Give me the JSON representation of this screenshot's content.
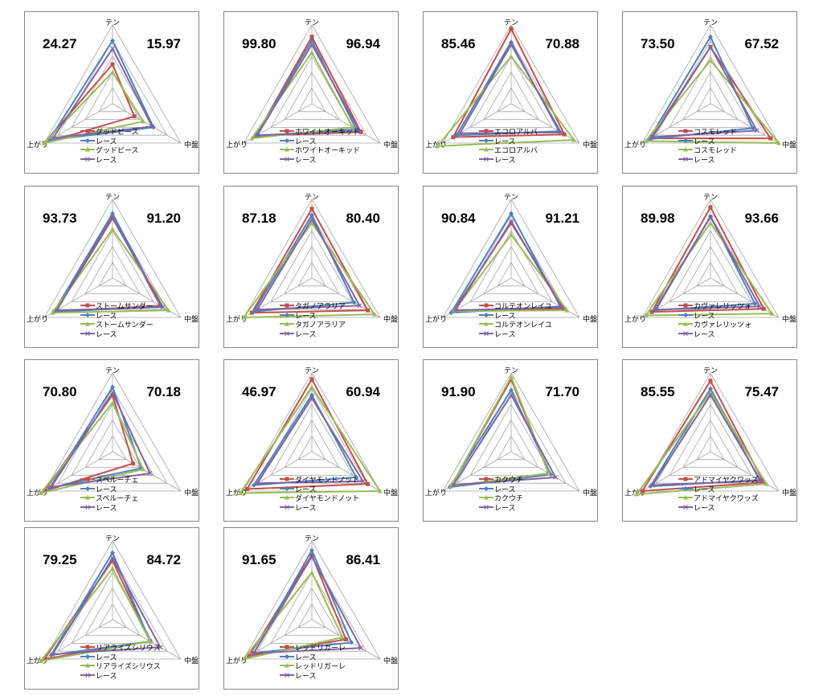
{
  "axes": [
    "テン",
    "中盤",
    "上がり"
  ],
  "series_colors": [
    "#C0504D",
    "#4F81BD",
    "#9BBB59",
    "#8064A2"
  ],
  "markers": [
    "square",
    "diamond",
    "triangle",
    "x"
  ],
  "chart_data": [
    {
      "type": "radar",
      "score_left": "24.27",
      "score_right": "15.97",
      "series": [
        {
          "name": "グッドピース",
          "values": [
            0.5,
            0.32,
            1.0
          ]
        },
        {
          "name": "レース",
          "values": [
            0.8,
            0.6,
            0.93
          ]
        },
        {
          "name": "グッドピース",
          "values": [
            0.4,
            0.45,
            1.0
          ]
        },
        {
          "name": "レース",
          "values": [
            0.7,
            0.58,
            0.87
          ]
        }
      ]
    },
    {
      "type": "radar",
      "score_left": "99.80",
      "score_right": "96.94",
      "series": [
        {
          "name": "ホワイトオーキッド",
          "values": [
            0.85,
            0.72,
            0.82
          ]
        },
        {
          "name": "レース",
          "values": [
            0.8,
            0.65,
            0.82
          ]
        },
        {
          "name": "ホワイトオーキッド",
          "values": [
            0.65,
            0.6,
            0.88
          ]
        },
        {
          "name": "レース",
          "values": [
            0.75,
            0.7,
            0.8
          ]
        }
      ]
    },
    {
      "type": "radar",
      "score_left": "85.46",
      "score_right": "70.88",
      "series": [
        {
          "name": "エコロアルバ",
          "values": [
            0.95,
            0.78,
            0.85
          ]
        },
        {
          "name": "レース",
          "values": [
            0.78,
            0.7,
            0.8
          ]
        },
        {
          "name": "エコロアルバ",
          "values": [
            0.6,
            0.92,
            1.08
          ]
        },
        {
          "name": "レース",
          "values": [
            0.75,
            0.73,
            0.75
          ]
        }
      ]
    },
    {
      "type": "radar",
      "score_left": "73.50",
      "score_right": "67.52",
      "series": [
        {
          "name": "コスモレッド",
          "values": [
            0.72,
            0.88,
            0.88
          ]
        },
        {
          "name": "レース",
          "values": [
            0.85,
            0.62,
            0.9
          ]
        },
        {
          "name": "コスモレッド",
          "values": [
            0.55,
            1.0,
            0.95
          ]
        },
        {
          "name": "レース",
          "values": [
            0.72,
            0.68,
            0.85
          ]
        }
      ]
    },
    {
      "type": "radar",
      "score_left": "93.73",
      "score_right": "91.20",
      "series": [
        {
          "name": "ストームサンダー",
          "values": [
            0.78,
            0.7,
            0.85
          ]
        },
        {
          "name": "レース",
          "values": [
            0.82,
            0.72,
            0.86
          ]
        },
        {
          "name": "ストームサンダー",
          "values": [
            0.62,
            0.82,
            0.88
          ]
        },
        {
          "name": "レース",
          "values": [
            0.76,
            0.74,
            0.82
          ]
        }
      ]
    },
    {
      "type": "radar",
      "score_left": "87.18",
      "score_right": "80.40",
      "series": [
        {
          "name": "タガノアラリア",
          "values": [
            0.88,
            0.82,
            0.88
          ]
        },
        {
          "name": "レース",
          "values": [
            0.8,
            0.62,
            0.85
          ]
        },
        {
          "name": "タガノアラリア",
          "values": [
            0.7,
            0.92,
            1.0
          ]
        },
        {
          "name": "レース",
          "values": [
            0.75,
            0.7,
            0.8
          ]
        }
      ]
    },
    {
      "type": "radar",
      "score_left": "90.84",
      "score_right": "91.21",
      "series": [
        {
          "name": "コルテオンレイユ",
          "values": [
            0.7,
            0.78,
            0.85
          ]
        },
        {
          "name": "レース",
          "values": [
            0.82,
            0.72,
            0.88
          ]
        },
        {
          "name": "コルテオンレイユ",
          "values": [
            0.55,
            0.82,
            0.84
          ]
        },
        {
          "name": "レース",
          "values": [
            0.72,
            0.74,
            0.82
          ]
        }
      ]
    },
    {
      "type": "radar",
      "score_left": "89.98",
      "score_right": "93.66",
      "series": [
        {
          "name": "カヴァレリッツォ",
          "values": [
            0.9,
            0.78,
            0.86
          ]
        },
        {
          "name": "レース",
          "values": [
            0.78,
            0.65,
            0.82
          ]
        },
        {
          "name": "カヴァレリッツォ",
          "values": [
            0.7,
            0.9,
            0.95
          ]
        },
        {
          "name": "レース",
          "values": [
            0.78,
            0.72,
            0.8
          ]
        }
      ]
    },
    {
      "type": "radar",
      "score_left": "70.80",
      "score_right": "70.18",
      "series": [
        {
          "name": "スペルーチェ",
          "values": [
            0.72,
            0.3,
            1.0
          ]
        },
        {
          "name": "レース",
          "values": [
            0.82,
            0.42,
            0.92
          ]
        },
        {
          "name": "スペルーチェ",
          "values": [
            0.62,
            0.45,
            1.05
          ]
        },
        {
          "name": "レース",
          "values": [
            0.75,
            0.55,
            0.9
          ]
        }
      ]
    },
    {
      "type": "radar",
      "score_left": "46.97",
      "score_right": "60.94",
      "series": [
        {
          "name": "ダイヤモンドノット",
          "values": [
            0.92,
            0.82,
            0.95
          ]
        },
        {
          "name": "レース",
          "values": [
            0.72,
            0.65,
            0.85
          ]
        },
        {
          "name": "ダイヤモンドノット",
          "values": [
            0.82,
            1.0,
            1.05
          ]
        },
        {
          "name": "レース",
          "values": [
            0.68,
            0.75,
            0.8
          ]
        }
      ]
    },
    {
      "type": "radar",
      "score_left": "91.90",
      "score_right": "71.70",
      "series": [
        {
          "name": "カクウチ",
          "values": [
            0.92,
            0.55,
            0.88
          ]
        },
        {
          "name": "レース",
          "values": [
            0.78,
            0.58,
            0.9
          ]
        },
        {
          "name": "カクウチ",
          "values": [
            0.95,
            0.55,
            0.88
          ]
        },
        {
          "name": "レース",
          "values": [
            0.72,
            0.65,
            0.85
          ]
        }
      ]
    },
    {
      "type": "radar",
      "score_left": "85.55",
      "score_right": "75.47",
      "series": [
        {
          "name": "アドマイヤクワッズ",
          "values": [
            0.9,
            0.78,
            1.0
          ]
        },
        {
          "name": "レース",
          "values": [
            0.8,
            0.72,
            0.88
          ]
        },
        {
          "name": "アドマイヤクワッズ",
          "values": [
            0.75,
            0.82,
            1.08
          ]
        },
        {
          "name": "レース",
          "values": [
            0.72,
            0.74,
            0.85
          ]
        }
      ]
    },
    {
      "type": "radar",
      "score_left": "79.25",
      "score_right": "84.72",
      "series": [
        {
          "name": "リアライズシリウス",
          "values": [
            0.75,
            0.55,
            1.0
          ]
        },
        {
          "name": "レース",
          "values": [
            0.85,
            0.55,
            0.9
          ]
        },
        {
          "name": "リアライズシリウス",
          "values": [
            0.65,
            0.55,
            1.05
          ]
        },
        {
          "name": "レース",
          "values": [
            0.78,
            0.7,
            0.88
          ]
        }
      ]
    },
    {
      "type": "radar",
      "score_left": "91.65",
      "score_right": "86.41",
      "series": [
        {
          "name": "レッドリガーレ",
          "values": [
            0.82,
            0.5,
            0.92
          ]
        },
        {
          "name": "レース",
          "values": [
            0.88,
            0.58,
            0.85
          ]
        },
        {
          "name": "レッドリガーレ",
          "values": [
            0.6,
            0.45,
            1.0
          ]
        },
        {
          "name": "レース",
          "values": [
            0.8,
            0.72,
            0.85
          ]
        }
      ]
    }
  ]
}
